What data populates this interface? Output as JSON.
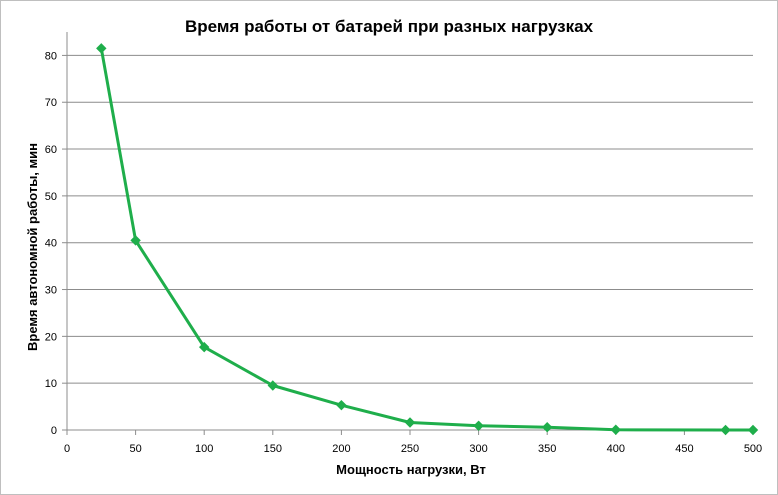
{
  "chart_data": {
    "type": "line",
    "title": "Время работы  от батарей  при разных  нагрузках",
    "xlabel": "Мощность нагрузки, Вт",
    "ylabel": "Время автономной работы, мин",
    "xlim": [
      0,
      500
    ],
    "ylim": [
      0,
      85
    ],
    "xticks": [
      0,
      50,
      100,
      150,
      200,
      250,
      300,
      350,
      400,
      450,
      500
    ],
    "yticks": [
      0,
      10,
      20,
      30,
      40,
      50,
      60,
      70,
      80
    ],
    "grid": "horizontal",
    "series": [
      {
        "color": "#1fae4b",
        "marker": "diamond",
        "points": [
          {
            "x": 25,
            "y": 81.5
          },
          {
            "x": 50,
            "y": 40.5
          },
          {
            "x": 100,
            "y": 17.7
          },
          {
            "x": 150,
            "y": 9.5
          },
          {
            "x": 200,
            "y": 5.3
          },
          {
            "x": 250,
            "y": 1.6
          },
          {
            "x": 300,
            "y": 0.9
          },
          {
            "x": 350,
            "y": 0.6
          },
          {
            "x": 400,
            "y": 0.05
          },
          {
            "x": 480,
            "y": 0.0
          },
          {
            "x": 500,
            "y": 0.0
          }
        ]
      }
    ]
  }
}
